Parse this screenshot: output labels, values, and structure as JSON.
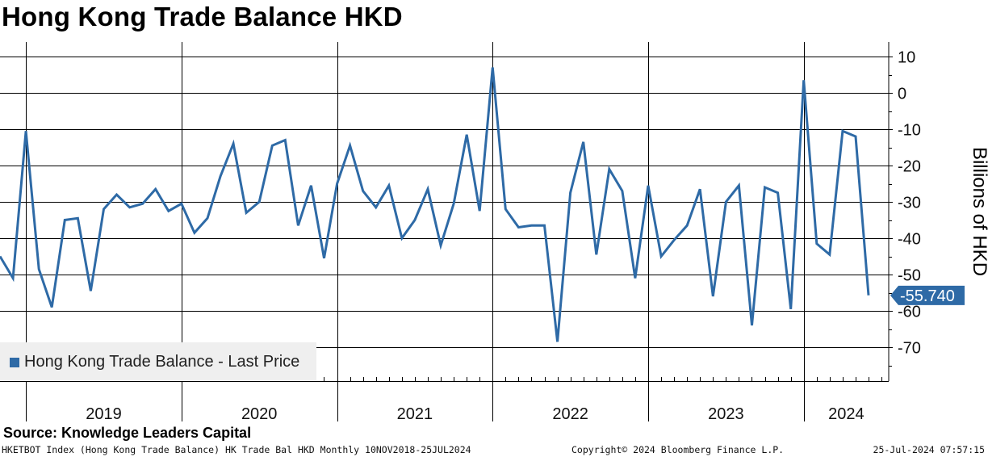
{
  "title": "Hong Kong Trade Balance HKD",
  "source": "Source: Knowledge Leaders Capital",
  "footer": {
    "left": "HKETBOT Index (Hong Kong Trade Balance) HK Trade Bal HKD  Monthly 10NOV2018-25JUL2024",
    "center": "Copyright© 2024 Bloomberg Finance L.P.",
    "right": "25-Jul-2024 07:57:15"
  },
  "colors": {
    "series": "#2e6aa6",
    "grid": "#000000",
    "legend_bg": "#efefef"
  },
  "chart_data": {
    "type": "line",
    "ylabel": "Billions of HKD",
    "ylim": [
      -80,
      13
    ],
    "yticks": [
      10,
      0,
      -10,
      -20,
      -30,
      -40,
      -50,
      -60,
      -70
    ],
    "xlim": [
      "2018-11",
      "2024-07"
    ],
    "year_labels": [
      "2019",
      "2020",
      "2021",
      "2022",
      "2023",
      "2024"
    ],
    "grid": true,
    "legend": {
      "position": "bottom-left",
      "entries": [
        "Hong Kong Trade Balance - Last Price"
      ]
    },
    "last_value_label": "-55.740",
    "series": [
      {
        "name": "Hong Kong Trade Balance - Last Price",
        "x": [
          "2018-11",
          "2018-12",
          "2019-01",
          "2019-02",
          "2019-03",
          "2019-04",
          "2019-05",
          "2019-06",
          "2019-07",
          "2019-08",
          "2019-09",
          "2019-10",
          "2019-11",
          "2019-12",
          "2020-01",
          "2020-02",
          "2020-03",
          "2020-04",
          "2020-05",
          "2020-06",
          "2020-07",
          "2020-08",
          "2020-09",
          "2020-10",
          "2020-11",
          "2020-12",
          "2021-01",
          "2021-02",
          "2021-03",
          "2021-04",
          "2021-05",
          "2021-06",
          "2021-07",
          "2021-08",
          "2021-09",
          "2021-10",
          "2021-11",
          "2021-12",
          "2022-01",
          "2022-02",
          "2022-03",
          "2022-04",
          "2022-05",
          "2022-06",
          "2022-07",
          "2022-08",
          "2022-09",
          "2022-10",
          "2022-11",
          "2022-12",
          "2023-01",
          "2023-02",
          "2023-03",
          "2023-04",
          "2023-05",
          "2023-06",
          "2023-07",
          "2023-08",
          "2023-09",
          "2023-10",
          "2023-11",
          "2023-12",
          "2024-01",
          "2024-02",
          "2024-03",
          "2024-04",
          "2024-05",
          "2024-06"
        ],
        "values": [
          -45,
          -51,
          -10.5,
          -48.5,
          -59,
          -35,
          -34.5,
          -54.5,
          -32,
          -28,
          -31.5,
          -30.5,
          -26.5,
          -32.5,
          -30.5,
          -38.5,
          -34.5,
          -23,
          -14,
          -33,
          -30,
          -14.5,
          -13,
          -36.5,
          -25.5,
          -45.5,
          -25,
          -14.5,
          -27,
          -31.5,
          -25.5,
          -40,
          -35,
          -26.5,
          -42,
          -30.5,
          -11.5,
          -32.5,
          7,
          -32,
          -37,
          -36.5,
          -36.5,
          -68.5,
          -27.5,
          -13.5,
          -44.5,
          -21,
          -27,
          -51,
          -25.5,
          -45,
          -40.5,
          -36.5,
          -26.5,
          -56,
          -30,
          -25.5,
          -64,
          -26,
          -27.5,
          -59.5,
          3.5,
          -41.5,
          -44.5,
          -10.5,
          -12,
          -55.74
        ]
      }
    ]
  }
}
